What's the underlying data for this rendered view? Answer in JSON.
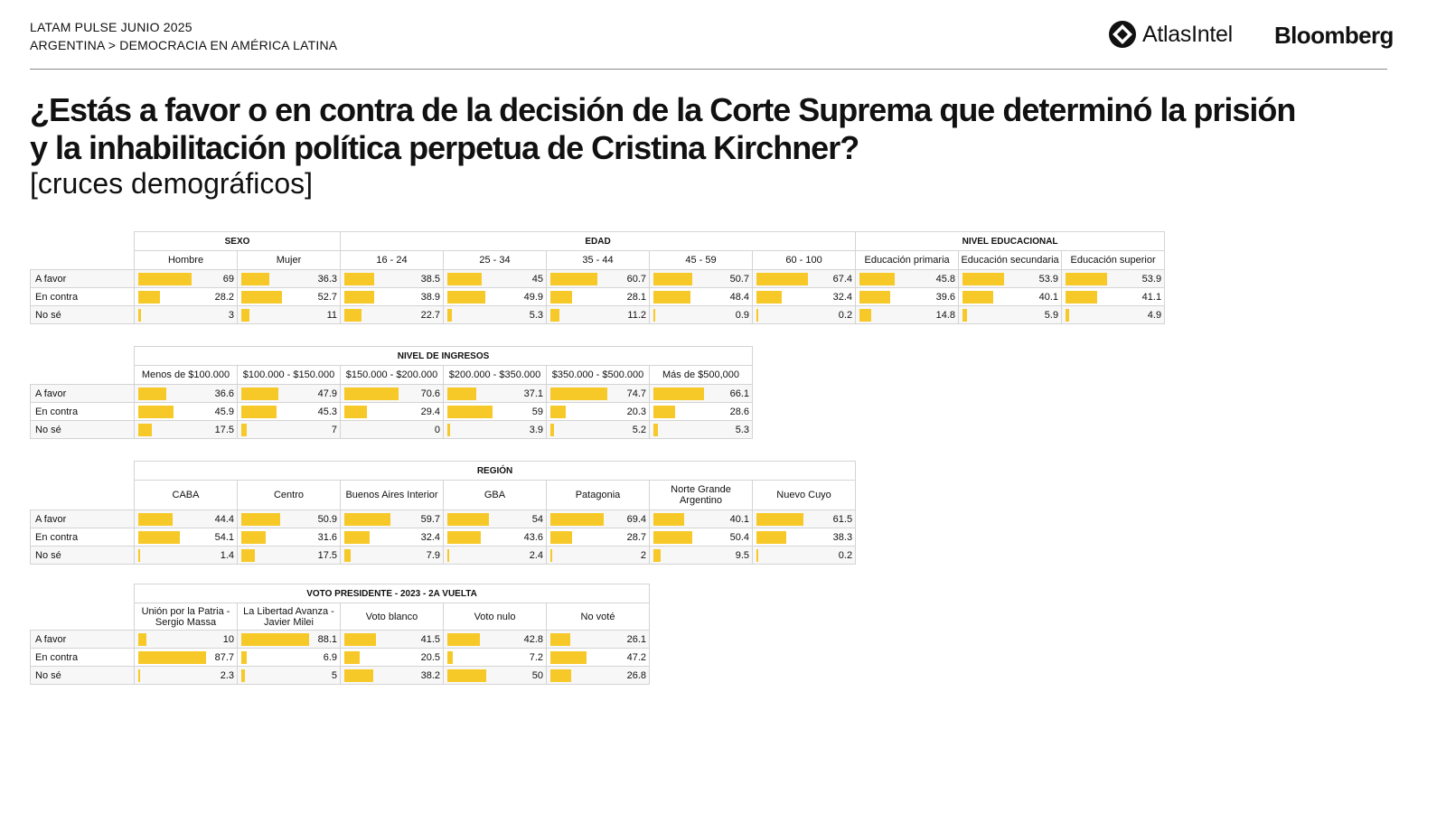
{
  "header": {
    "line1": "LATAM PULSE JUNIO 2025",
    "line2": "ARGENTINA > DEMOCRACIA EN AMÉRICA LATINA",
    "brand1": "AtlasIntel",
    "brand2": "Bloomberg"
  },
  "title": "¿Estás a favor o en contra de la decisión de la Corte Suprema que determinó la prisión y la inhabilitación política perpetua de Cristina Kirchner?",
  "subtitle": "[cruces demográficos]",
  "colors": {
    "bar": "#f7c928",
    "border": "#d4d4d4"
  },
  "chart_data": [
    {
      "type": "bar",
      "title": "",
      "rows": [
        "A favor",
        "En contra",
        "No sé"
      ],
      "groups": [
        {
          "name": "SEXO",
          "categories": [
            "Hombre",
            "Mujer"
          ]
        },
        {
          "name": "EDAD",
          "categories": [
            "16 - 24",
            "25 - 34",
            "35 - 44",
            "45 - 59",
            "60 - 100"
          ]
        },
        {
          "name": "NIVEL EDUCACIONAL",
          "categories": [
            "Educación primaria",
            "Educación secundaria",
            "Educación superior"
          ]
        }
      ],
      "series": [
        {
          "name": "A favor",
          "values": [
            69,
            36.3,
            38.5,
            45,
            60.7,
            50.7,
            67.4,
            45.8,
            53.9,
            53.9
          ]
        },
        {
          "name": "En contra",
          "values": [
            28.2,
            52.7,
            38.9,
            49.9,
            28.1,
            48.4,
            32.4,
            39.6,
            40.1,
            41.1
          ]
        },
        {
          "name": "No sé",
          "values": [
            3,
            11,
            22.7,
            5.3,
            11.2,
            0.9,
            0.2,
            14.8,
            5.9,
            4.9
          ]
        }
      ]
    },
    {
      "type": "bar",
      "title": "",
      "rows": [
        "A favor",
        "En contra",
        "No sé"
      ],
      "groups": [
        {
          "name": "NIVEL DE INGRESOS",
          "categories": [
            "Menos de $100.000",
            "$100.000 - $150.000",
            "$150.000 - $200.000",
            "$200.000 - $350.000",
            "$350.000 - $500.000",
            "Más de $500,000"
          ]
        }
      ],
      "series": [
        {
          "name": "A favor",
          "values": [
            36.6,
            47.9,
            70.6,
            37.1,
            74.7,
            66.1
          ]
        },
        {
          "name": "En contra",
          "values": [
            45.9,
            45.3,
            29.4,
            59,
            20.3,
            28.6
          ]
        },
        {
          "name": "No sé",
          "values": [
            17.5,
            7,
            0,
            3.9,
            5.2,
            5.3
          ]
        }
      ]
    },
    {
      "type": "bar",
      "title": "",
      "rows": [
        "A favor",
        "En contra",
        "No sé"
      ],
      "groups": [
        {
          "name": "REGIÓN",
          "categories": [
            "CABA",
            "Centro",
            "Buenos Aires Interior",
            "GBA",
            "Patagonia",
            "Norte Grande Argentino",
            "Nuevo Cuyo"
          ]
        }
      ],
      "series": [
        {
          "name": "A favor",
          "values": [
            44.4,
            50.9,
            59.7,
            54,
            69.4,
            40.1,
            61.5
          ]
        },
        {
          "name": "En contra",
          "values": [
            54.1,
            31.6,
            32.4,
            43.6,
            28.7,
            50.4,
            38.3
          ]
        },
        {
          "name": "No sé",
          "values": [
            1.4,
            17.5,
            7.9,
            2.4,
            2,
            9.5,
            0.2
          ]
        }
      ]
    },
    {
      "type": "bar",
      "title": "",
      "rows": [
        "A favor",
        "En contra",
        "No sé"
      ],
      "groups": [
        {
          "name": "VOTO PRESIDENTE - 2023 - 2A VUELTA",
          "categories": [
            "Unión por la Patria - Sergio Massa",
            "La Libertad Avanza - Javier Milei",
            "Voto blanco",
            "Voto nulo",
            "No voté"
          ]
        }
      ],
      "series": [
        {
          "name": "A favor",
          "values": [
            10,
            88.1,
            41.5,
            42.8,
            26.1
          ]
        },
        {
          "name": "En contra",
          "values": [
            87.7,
            6.9,
            20.5,
            7.2,
            47.2
          ]
        },
        {
          "name": "No sé",
          "values": [
            2.3,
            5,
            38.2,
            50,
            26.8
          ]
        }
      ]
    }
  ]
}
